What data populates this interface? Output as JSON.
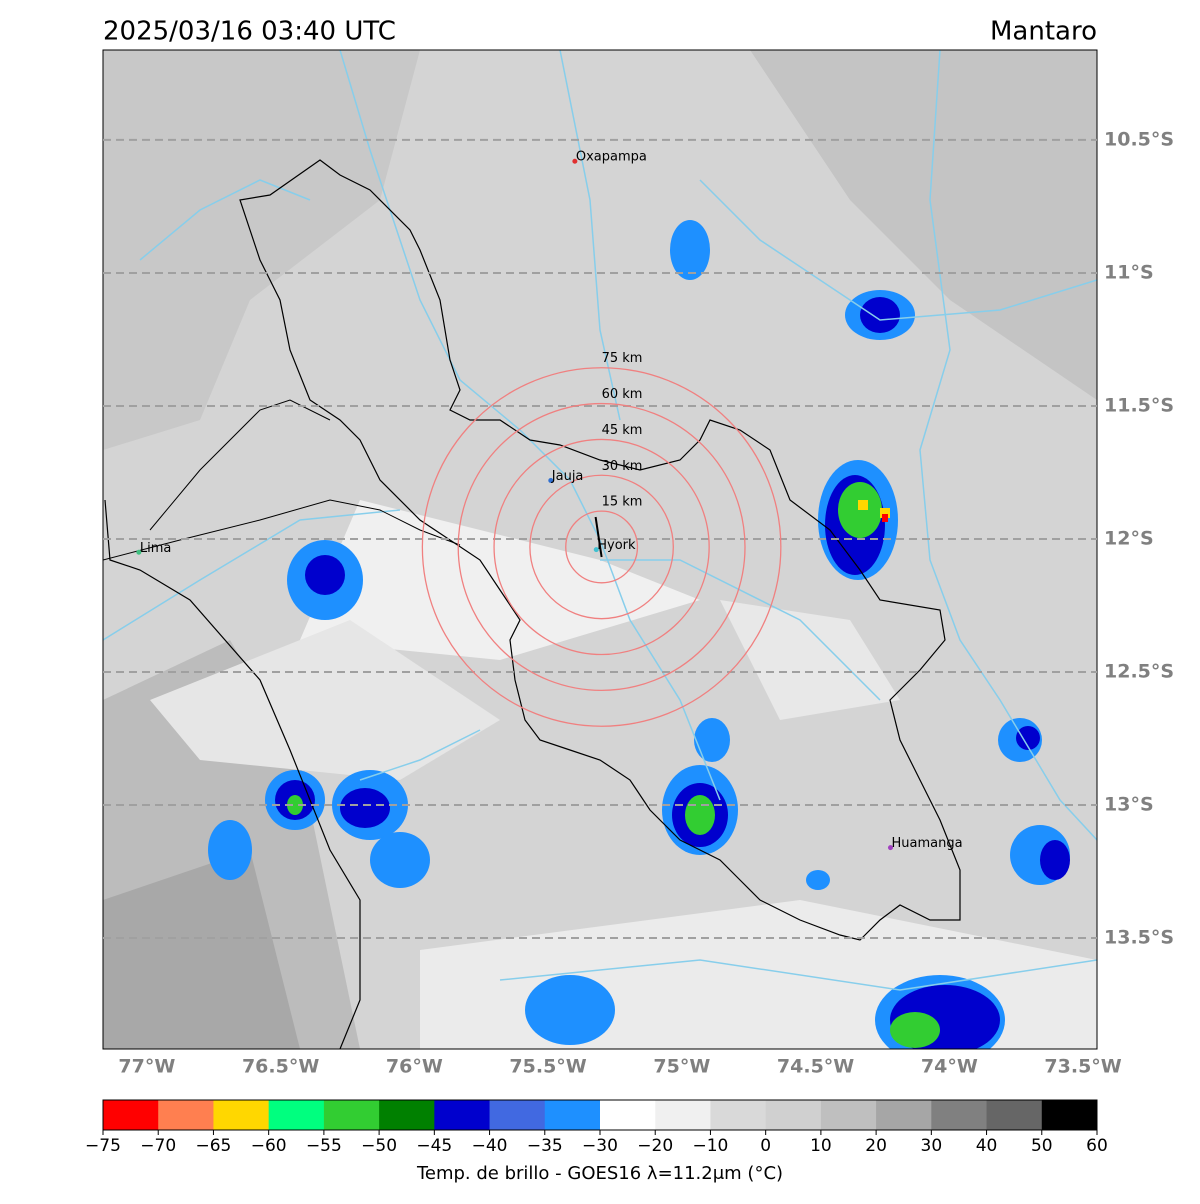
{
  "header": {
    "title": "2025/03/16 03:40 UTC",
    "location": "Mantaro"
  },
  "map": {
    "xlim": [
      -77.164,
      -73.448
    ],
    "ylim": [
      -13.917,
      -10.162
    ],
    "xticks": [
      {
        "value": -77,
        "label": "77°W"
      },
      {
        "value": -76.5,
        "label": "76.5°W"
      },
      {
        "value": -76,
        "label": "76°W"
      },
      {
        "value": -75.5,
        "label": "75.5°W"
      },
      {
        "value": -75,
        "label": "75°W"
      },
      {
        "value": -74.5,
        "label": "74.5°W"
      },
      {
        "value": -74,
        "label": "74°W"
      },
      {
        "value": -73.5,
        "label": "73.5°W"
      }
    ],
    "yticks": [
      {
        "value": -10.5,
        "label": "10.5°S"
      },
      {
        "value": -11,
        "label": "11°S"
      },
      {
        "value": -11.5,
        "label": "11.5°S"
      },
      {
        "value": -12,
        "label": "12°S"
      },
      {
        "value": -12.5,
        "label": "12.5°S"
      },
      {
        "value": -13,
        "label": "13°S"
      },
      {
        "value": -13.5,
        "label": "13.5°S"
      }
    ],
    "cities": [
      {
        "name": "Oxapampa",
        "lon": -75.4,
        "lat": -10.58,
        "color": "#e03030"
      },
      {
        "name": "Lima",
        "lon": -77.03,
        "lat": -12.05,
        "color": "#40c080"
      },
      {
        "name": "Jauja",
        "lon": -75.49,
        "lat": -11.78,
        "color": "#3070d0"
      },
      {
        "name": "Hyork",
        "lon": -75.32,
        "lat": -12.04,
        "color": "#40c0d0"
      },
      {
        "name": "Huamanga",
        "lon": -74.22,
        "lat": -13.16,
        "color": "#a040c0"
      }
    ],
    "rings": {
      "lon": -75.3,
      "lat": -12.03,
      "color": "#f08080",
      "radii": [
        {
          "value": 15,
          "label": "15 km"
        },
        {
          "value": 30,
          "label": "30 km"
        },
        {
          "value": 45,
          "label": "45 km"
        },
        {
          "value": 60,
          "label": "60 km"
        },
        {
          "value": 75,
          "label": "75 km"
        }
      ]
    }
  },
  "colorbar": {
    "label": "Temp. de brillo - GOES16 λ=11.2μm (°C)",
    "ticks": [
      {
        "value": -75,
        "label": "−75"
      },
      {
        "value": -70,
        "label": "−70"
      },
      {
        "value": -65,
        "label": "−65"
      },
      {
        "value": -60,
        "label": "−60"
      },
      {
        "value": -55,
        "label": "−55"
      },
      {
        "value": -50,
        "label": "−50"
      },
      {
        "value": -45,
        "label": "−45"
      },
      {
        "value": -40,
        "label": "−40"
      },
      {
        "value": -35,
        "label": "−35"
      },
      {
        "value": -30,
        "label": "−30"
      },
      {
        "value": -20,
        "label": "−20"
      },
      {
        "value": -10,
        "label": "−10"
      },
      0,
      10,
      20,
      30,
      40,
      50,
      60
    ],
    "colors": [
      "#ff0000",
      "#ff7f50",
      "#ffd700",
      "#00ff7f",
      "#32cd32",
      "#008000",
      "#0000cd",
      "#4169e1",
      "#1e90ff",
      "#ffffff",
      "#f0f0f0",
      "#d9d9d9",
      "#d0d0d0",
      "#bfbfbf",
      "#a6a6a6",
      "#808080",
      "#666666",
      "#000000"
    ]
  }
}
